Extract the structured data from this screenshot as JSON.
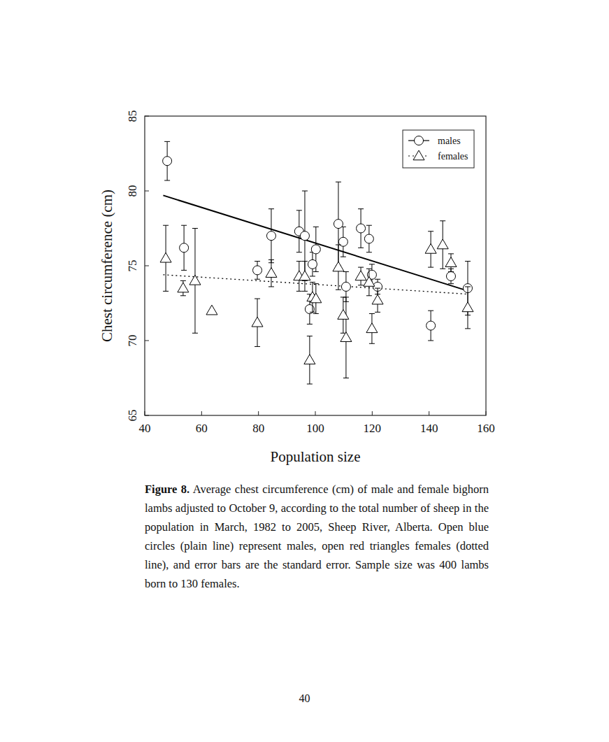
{
  "chart_data": {
    "type": "scatter",
    "x_label": "Population size",
    "y_label": "Chest circumference (cm)",
    "xlim": [
      40,
      160
    ],
    "ylim": [
      65,
      85
    ],
    "xticks": [
      40,
      60,
      80,
      100,
      120,
      140,
      160
    ],
    "yticks": [
      65,
      70,
      75,
      80,
      85
    ],
    "grid": false,
    "legend": "upper right",
    "series": [
      {
        "name": "males",
        "color": "#000000",
        "marker": "circle",
        "line_style": "solid",
        "x": [
          47.9,
          53.8,
          79.6,
          84.5,
          94.3,
          96.3,
          98.0,
          99.0,
          100.2,
          108.1,
          109.8,
          110.8,
          116.0,
          118.9,
          119.9,
          121.9,
          140.6,
          147.7,
          153.6
        ],
        "values": [
          82.0,
          76.2,
          74.7,
          77.0,
          77.3,
          77.0,
          72.1,
          75.1,
          76.1,
          77.8,
          76.6,
          73.6,
          77.5,
          76.8,
          74.4,
          73.6,
          71.0,
          74.3,
          73.5
        ],
        "errors": [
          1.3,
          1.5,
          0.6,
          1.8,
          1.4,
          3.0,
          1.0,
          0.8,
          1.5,
          2.8,
          1.0,
          1.0,
          1.3,
          0.9,
          0.7,
          0.5,
          1.0,
          0.5,
          1.8
        ],
        "fit": {
          "x": [
            46.5,
            154
          ],
          "values": [
            79.7,
            73.3
          ]
        }
      },
      {
        "name": "females",
        "color": "#000000",
        "marker": "triangle",
        "line_style": "dotted",
        "x": [
          47.4,
          53.5,
          57.7,
          63.6,
          79.6,
          84.5,
          94.3,
          96.3,
          98.0,
          99.0,
          100.2,
          108.1,
          109.8,
          110.8,
          116.0,
          118.9,
          119.9,
          121.9,
          140.6,
          144.8,
          147.7,
          153.6
        ],
        "values": [
          75.5,
          73.5,
          74.0,
          72.0,
          71.2,
          74.5,
          74.3,
          74.3,
          68.7,
          72.9,
          72.8,
          74.9,
          71.7,
          70.2,
          74.3,
          73.9,
          70.8,
          72.7,
          76.1,
          76.4,
          75.2,
          72.2
        ],
        "errors": [
          2.2,
          0.5,
          3.5,
          0,
          1.6,
          0.9,
          1.0,
          1.0,
          1.6,
          1.0,
          1.0,
          1.5,
          1.2,
          2.7,
          0.6,
          0.9,
          1.0,
          0.8,
          1.2,
          1.6,
          0.6,
          1.4
        ],
        "fit": {
          "x": [
            46.5,
            154
          ],
          "values": [
            74.4,
            73.1
          ]
        }
      }
    ],
    "caption_label": "Figure 8.",
    "caption": "Average chest circumference (cm) of male and female bighorn lambs adjusted to October 9, according to the total number of sheep in the population in March, 1982 to 2005, Sheep River, Alberta. Open blue circles (plain line) represent males, open red triangles females (dotted line), and error bars are the standard error. Sample size was 400 lambs born to 130 females.",
    "page_number": "40"
  }
}
